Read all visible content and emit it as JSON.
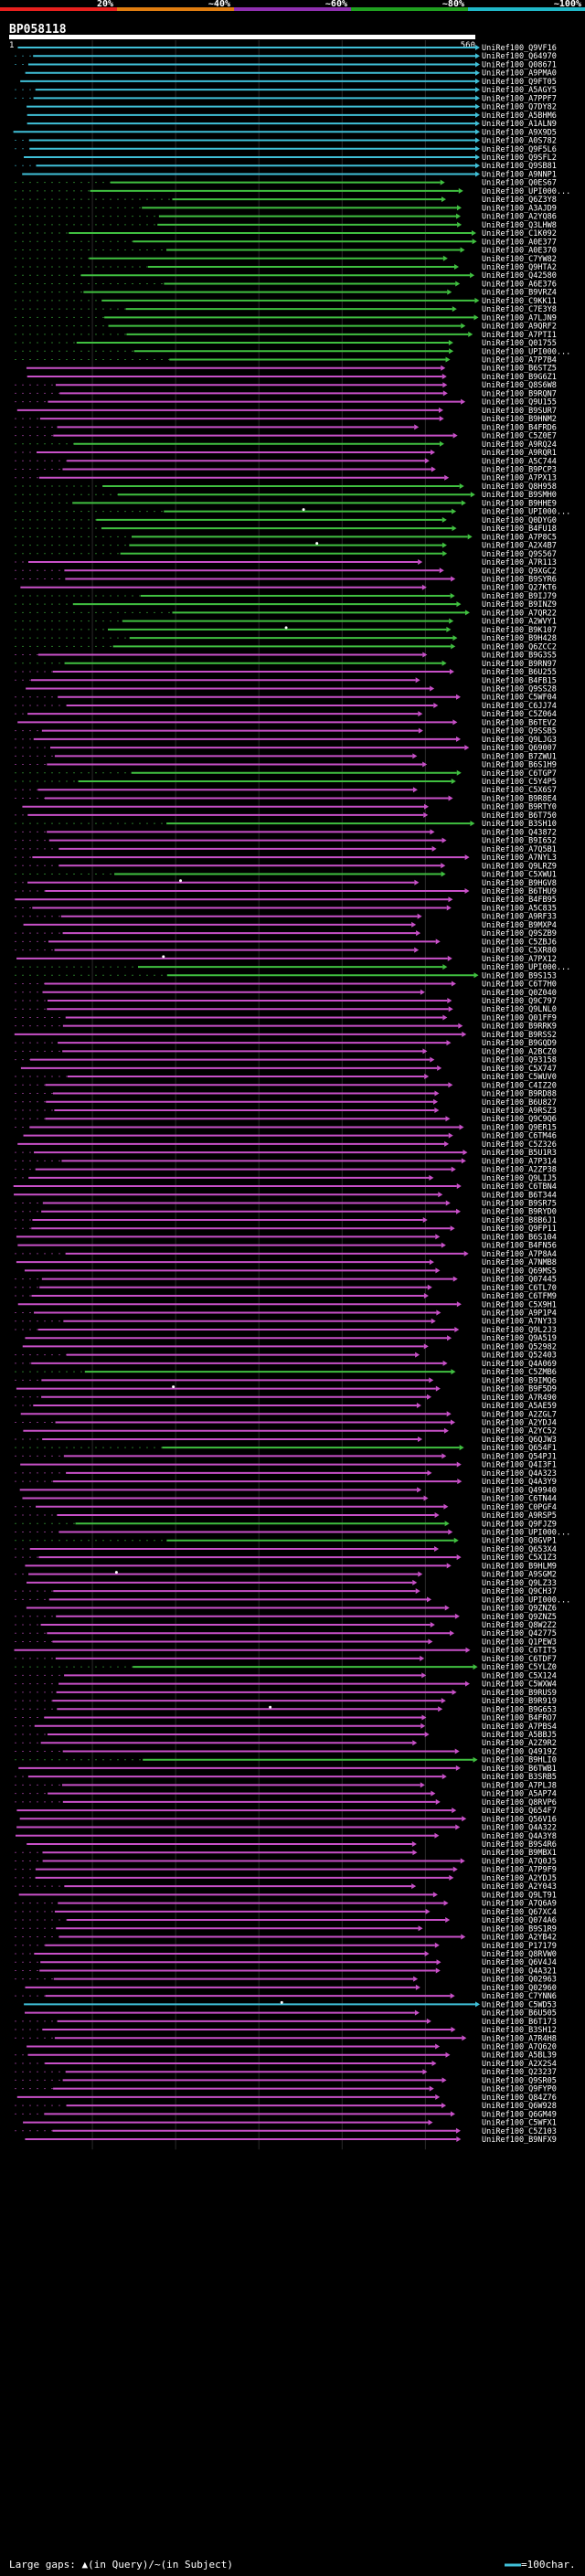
{
  "title": "BP058118",
  "scale": {
    "labels": [
      "20%",
      "~40%",
      "~60%",
      "~80%",
      "~100%"
    ],
    "colors": [
      "#e8201e",
      "#e07d10",
      "#9030b0",
      "#20a020",
      "#20b8c8"
    ]
  },
  "query": {
    "start_label": "1",
    "end_label": "560",
    "length": 560
  },
  "legend": {
    "large_gaps": "Large gaps: ▲(in Query)/~(in Subject)",
    "scale_label": "=100char."
  },
  "colors": {
    "teal": "#40c0d8",
    "green": "#40c040",
    "magenta": "#c850c8",
    "white": "#ffffff"
  },
  "hits": [
    {
      "id": "UniRef100_Q9VF16",
      "c": "t"
    },
    {
      "id": "UniRef100_Q64970",
      "c": "t"
    },
    {
      "id": "UniRef100_Q08671",
      "c": "t"
    },
    {
      "id": "UniRef100_A9PMA0",
      "c": "t"
    },
    {
      "id": "UniRef100_Q9FT05",
      "c": "t"
    },
    {
      "id": "UniRef100_A5AGY5",
      "c": "t"
    },
    {
      "id": "UniRef100_A7PPF7",
      "c": "t"
    },
    {
      "id": "UniRef100_Q7DY82",
      "c": "t"
    },
    {
      "id": "UniRef100_A5BHM6",
      "c": "t"
    },
    {
      "id": "UniRef100_A1ALN9",
      "c": "t"
    },
    {
      "id": "UniRef100_A9X9D5",
      "c": "t"
    },
    {
      "id": "UniRef100_A0S782",
      "c": "t"
    },
    {
      "id": "UniRef100_Q9F5L6",
      "c": "t"
    },
    {
      "id": "UniRef100_Q9SFL2",
      "c": "t"
    },
    {
      "id": "UniRef100_Q9SB81",
      "c": "t"
    },
    {
      "id": "UniRef100_A9NNP1",
      "c": "t"
    },
    {
      "id": "UniRef100_Q0ES67",
      "c": "g"
    },
    {
      "id": "UniRef100_UPI000...",
      "c": "g"
    },
    {
      "id": "UniRef100_Q6Z3Y8",
      "c": "g"
    },
    {
      "id": "UniRef100_A3AJD9",
      "c": "g"
    },
    {
      "id": "UniRef100_A2YQ86",
      "c": "g"
    },
    {
      "id": "UniRef100_Q3LHW8",
      "c": "g"
    },
    {
      "id": "UniRef100_C1K092",
      "c": "g"
    },
    {
      "id": "UniRef100_A0E377",
      "c": "g"
    },
    {
      "id": "UniRef100_A0E370",
      "c": "g"
    },
    {
      "id": "UniRef100_C7YW82",
      "c": "g"
    },
    {
      "id": "UniRef100_Q9HTA2",
      "c": "g"
    },
    {
      "id": "UniRef100_Q42580",
      "c": "g"
    },
    {
      "id": "UniRef100_A6E376",
      "c": "g"
    },
    {
      "id": "UniRef100_B9VRZ4",
      "c": "g"
    },
    {
      "id": "UniRef100_C9KK11",
      "c": "g"
    },
    {
      "id": "UniRef100_C7E3Y8",
      "c": "g"
    },
    {
      "id": "UniRef100_A7LJN9",
      "c": "g"
    },
    {
      "id": "UniRef100_A9QRF2",
      "c": "g"
    },
    {
      "id": "UniRef100_A7PTI1",
      "c": "g"
    },
    {
      "id": "UniRef100_Q01755",
      "c": "g"
    },
    {
      "id": "UniRef100_UPI000...",
      "c": "g"
    },
    {
      "id": "UniRef100_A7P7B4",
      "c": "g"
    },
    {
      "id": "UniRef100_B6STZ5",
      "c": "m"
    },
    {
      "id": "UniRef100_B9G6Z1",
      "c": "m"
    },
    {
      "id": "UniRef100_Q8S6W8",
      "c": "m"
    },
    {
      "id": "UniRef100_B9RQN7",
      "c": "m"
    },
    {
      "id": "UniRef100_Q9U155",
      "c": "m"
    },
    {
      "id": "UniRef100_B9SUR7",
      "c": "m"
    },
    {
      "id": "UniRef100_B9HNM2",
      "c": "m"
    },
    {
      "id": "UniRef100_B4FRD6",
      "c": "m"
    },
    {
      "id": "UniRef100_C5Z0E7",
      "c": "m"
    },
    {
      "id": "UniRef100_A9RQ24",
      "c": "g"
    },
    {
      "id": "UniRef100_A9RQR1",
      "c": "m"
    },
    {
      "id": "UniRef100_A5C744",
      "c": "m"
    },
    {
      "id": "UniRef100_B9PCP3",
      "c": "m"
    },
    {
      "id": "UniRef100_A7PX13",
      "c": "m"
    },
    {
      "id": "UniRef100_Q8H958",
      "c": "g"
    },
    {
      "id": "UniRef100_B9SMH0",
      "c": "g"
    },
    {
      "id": "UniRef100_B9HHE9",
      "c": "g"
    },
    {
      "id": "UniRef100_UPI000...",
      "c": "g",
      "dot": true
    },
    {
      "id": "UniRef100_Q0DYG0",
      "c": "g"
    },
    {
      "id": "UniRef100_B4FU18",
      "c": "g"
    },
    {
      "id": "UniRef100_A7P8C5",
      "c": "g"
    },
    {
      "id": "UniRef100_A2X4B7",
      "c": "g",
      "dot": true
    },
    {
      "id": "UniRef100_Q9S567",
      "c": "g"
    },
    {
      "id": "UniRef100_A7R113",
      "c": "m"
    },
    {
      "id": "UniRef100_Q9XGC2",
      "c": "m"
    },
    {
      "id": "UniRef100_B9SYR6",
      "c": "m"
    },
    {
      "id": "UniRef100_Q27KT6",
      "c": "m"
    },
    {
      "id": "UniRef100_B9IJ79",
      "c": "g"
    },
    {
      "id": "UniRef100_B9INZ9",
      "c": "g"
    },
    {
      "id": "UniRef100_A7QR22",
      "c": "g"
    },
    {
      "id": "UniRef100_A2WVY1",
      "c": "g"
    },
    {
      "id": "UniRef100_B9K107",
      "c": "g",
      "dot": true
    },
    {
      "id": "UniRef100_B9H428",
      "c": "g"
    },
    {
      "id": "UniRef100_Q6ZCC2",
      "c": "g"
    },
    {
      "id": "UniRef100_B9G3S5",
      "c": "m"
    },
    {
      "id": "UniRef100_B9RN97",
      "c": "g"
    },
    {
      "id": "UniRef100_B6U255",
      "c": "m"
    },
    {
      "id": "UniRef100_B4FB15",
      "c": "m"
    },
    {
      "id": "UniRef100_Q9SS28",
      "c": "m"
    },
    {
      "id": "UniRef100_C5WF04",
      "c": "m"
    },
    {
      "id": "UniRef100_C6JJ74",
      "c": "m"
    },
    {
      "id": "UniRef100_C5Z064",
      "c": "m"
    },
    {
      "id": "UniRef100_B6TEV2",
      "c": "m"
    },
    {
      "id": "UniRef100_Q9SSB5",
      "c": "m"
    },
    {
      "id": "UniRef100_Q9LJG3",
      "c": "m"
    },
    {
      "id": "UniRef100_Q69007",
      "c": "m"
    },
    {
      "id": "UniRef100_B7ZWU1",
      "c": "m"
    },
    {
      "id": "UniRef100_B6S1H9",
      "c": "m"
    },
    {
      "id": "UniRef100_C6TGP7",
      "c": "g"
    },
    {
      "id": "UniRef100_C5Y4P5",
      "c": "g"
    },
    {
      "id": "UniRef100_C5X6S7",
      "c": "m"
    },
    {
      "id": "UniRef100_B9R8E4",
      "c": "m"
    },
    {
      "id": "UniRef100_B9RTY0",
      "c": "m"
    },
    {
      "id": "UniRef100_B6T750",
      "c": "m"
    },
    {
      "id": "UniRef100_B3SH10",
      "c": "g"
    },
    {
      "id": "UniRef100_Q43872",
      "c": "m"
    },
    {
      "id": "UniRef100_B9I652",
      "c": "m"
    },
    {
      "id": "UniRef100_A7Q5B1",
      "c": "m"
    },
    {
      "id": "UniRef100_A7NYL3",
      "c": "m"
    },
    {
      "id": "UniRef100_Q9LRZ9",
      "c": "m"
    },
    {
      "id": "UniRef100_C5XWU1",
      "c": "g"
    },
    {
      "id": "UniRef100_B9HGV8",
      "c": "m",
      "dot": true
    },
    {
      "id": "UniRef100_B6THU9",
      "c": "m"
    },
    {
      "id": "UniRef100_B4FB95",
      "c": "m"
    },
    {
      "id": "UniRef100_A5C835",
      "c": "m"
    },
    {
      "id": "UniRef100_A9RF33",
      "c": "m"
    },
    {
      "id": "UniRef100_B9MXP4",
      "c": "m"
    },
    {
      "id": "UniRef100_Q9SZB9",
      "c": "m"
    },
    {
      "id": "UniRef100_C5ZBJ6",
      "c": "m"
    },
    {
      "id": "UniRef100_C5XR80",
      "c": "m"
    },
    {
      "id": "UniRef100_A7PX12",
      "c": "m",
      "dot": true
    },
    {
      "id": "UniRef100_UPI000...",
      "c": "g"
    },
    {
      "id": "UniRef100_B9S153",
      "c": "g"
    },
    {
      "id": "UniRef100_C6T7H0",
      "c": "m"
    },
    {
      "id": "UniRef100_Q0Z040",
      "c": "m"
    },
    {
      "id": "UniRef100_Q9C797",
      "c": "m"
    },
    {
      "id": "UniRef100_Q9LNL0",
      "c": "m"
    },
    {
      "id": "UniRef100_Q01FF9",
      "c": "m"
    },
    {
      "id": "UniRef100_B9RRK9",
      "c": "m"
    },
    {
      "id": "UniRef100_B9RSS2",
      "c": "m"
    },
    {
      "id": "UniRef100_B9GQD9",
      "c": "m"
    },
    {
      "id": "UniRef100_A2BCZ0",
      "c": "m"
    },
    {
      "id": "UniRef100_Q93158",
      "c": "m"
    },
    {
      "id": "UniRef100_C5X747",
      "c": "m"
    },
    {
      "id": "UniRef100_C5WUV0",
      "c": "m"
    },
    {
      "id": "UniRef100_C4IZ20",
      "c": "m"
    },
    {
      "id": "UniRef100_B9RD88",
      "c": "m"
    },
    {
      "id": "UniRef100_B6U827",
      "c": "m"
    },
    {
      "id": "UniRef100_A9RSZ3",
      "c": "m"
    },
    {
      "id": "UniRef100_Q9C9Q6",
      "c": "m"
    },
    {
      "id": "UniRef100_Q9ER15",
      "c": "m"
    },
    {
      "id": "UniRef100_C6TM46",
      "c": "m"
    },
    {
      "id": "UniRef100_C5Z326",
      "c": "m"
    },
    {
      "id": "UniRef100_B5U1R3",
      "c": "m"
    },
    {
      "id": "UniRef100_A7P314",
      "c": "m"
    },
    {
      "id": "UniRef100_A2ZP38",
      "c": "m"
    },
    {
      "id": "UniRef100_Q9LIJ5",
      "c": "m"
    },
    {
      "id": "UniRef100_C6TBN4",
      "c": "m"
    },
    {
      "id": "UniRef100_B6T344",
      "c": "m"
    },
    {
      "id": "UniRef100_B9SR75",
      "c": "m"
    },
    {
      "id": "UniRef100_B9RYD0",
      "c": "m"
    },
    {
      "id": "UniRef100_B8B6J1",
      "c": "m"
    },
    {
      "id": "UniRef100_Q9FP11",
      "c": "m"
    },
    {
      "id": "UniRef100_B6S104",
      "c": "m"
    },
    {
      "id": "UniRef100_B4FN56",
      "c": "m"
    },
    {
      "id": "UniRef100_A7P8A4",
      "c": "m"
    },
    {
      "id": "UniRef100_A7NMB8",
      "c": "m"
    },
    {
      "id": "UniRef100_Q69MS5",
      "c": "m"
    },
    {
      "id": "UniRef100_Q07445",
      "c": "m"
    },
    {
      "id": "UniRef100_C6TL70",
      "c": "m"
    },
    {
      "id": "UniRef100_C6TFM9",
      "c": "m"
    },
    {
      "id": "UniRef100_C5X9H1",
      "c": "m"
    },
    {
      "id": "UniRef100_A9P1P4",
      "c": "m"
    },
    {
      "id": "UniRef100_A7NY33",
      "c": "m"
    },
    {
      "id": "UniRef100_Q9L2J3",
      "c": "m"
    },
    {
      "id": "UniRef100_Q9A519",
      "c": "m"
    },
    {
      "id": "UniRef100_Q52982",
      "c": "m"
    },
    {
      "id": "UniRef100_Q52403",
      "c": "m"
    },
    {
      "id": "UniRef100_Q4A069",
      "c": "m"
    },
    {
      "id": "UniRef100_C5ZMB6",
      "c": "g"
    },
    {
      "id": "UniRef100_B9IMQ6",
      "c": "m"
    },
    {
      "id": "UniRef100_B9F5D9",
      "c": "m",
      "dot": true
    },
    {
      "id": "UniRef100_A7R490",
      "c": "m"
    },
    {
      "id": "UniRef100_A5AE59",
      "c": "m"
    },
    {
      "id": "UniRef100_A2ZGL7",
      "c": "m"
    },
    {
      "id": "UniRef100_A2YDJ4",
      "c": "m"
    },
    {
      "id": "UniRef100_A2YC52",
      "c": "m"
    },
    {
      "id": "UniRef100_Q6QJW3",
      "c": "m"
    },
    {
      "id": "UniRef100_Q654F1",
      "c": "g"
    },
    {
      "id": "UniRef100_Q54PJ1",
      "c": "m"
    },
    {
      "id": "UniRef100_Q4I3F1",
      "c": "m"
    },
    {
      "id": "UniRef100_Q4A323",
      "c": "m"
    },
    {
      "id": "UniRef100_Q4A3Y9",
      "c": "m"
    },
    {
      "id": "UniRef100_Q49940",
      "c": "m"
    },
    {
      "id": "UniRef100_C6TN44",
      "c": "m"
    },
    {
      "id": "UniRef100_C0PGF4",
      "c": "m"
    },
    {
      "id": "UniRef100_A9RSP5",
      "c": "m"
    },
    {
      "id": "UniRef100_Q9FJZ9",
      "c": "g"
    },
    {
      "id": "UniRef100_UPI000...",
      "c": "m"
    },
    {
      "id": "UniRef100_Q8GVP1",
      "c": "g"
    },
    {
      "id": "UniRef100_Q653X4",
      "c": "m"
    },
    {
      "id": "UniRef100_C5X1Z3",
      "c": "m"
    },
    {
      "id": "UniRef100_B9HLM9",
      "c": "m"
    },
    {
      "id": "UniRef100_A9SGM2",
      "c": "m",
      "dot": true
    },
    {
      "id": "UniRef100_Q9LZ33",
      "c": "m"
    },
    {
      "id": "UniRef100_Q9CH37",
      "c": "m"
    },
    {
      "id": "UniRef100_UPI000...",
      "c": "m"
    },
    {
      "id": "UniRef100_Q9ZNZ6",
      "c": "m"
    },
    {
      "id": "UniRef100_Q9ZNZ5",
      "c": "m"
    },
    {
      "id": "UniRef100_Q8W2Z2",
      "c": "m"
    },
    {
      "id": "UniRef100_Q42775",
      "c": "m"
    },
    {
      "id": "UniRef100_Q1PEW3",
      "c": "m"
    },
    {
      "id": "UniRef100_C6TIT5",
      "c": "m"
    },
    {
      "id": "UniRef100_C6TDF7",
      "c": "m"
    },
    {
      "id": "UniRef100_C5YLZ0",
      "c": "g"
    },
    {
      "id": "UniRef100_C5X124",
      "c": "m"
    },
    {
      "id": "UniRef100_C5WXW4",
      "c": "m"
    },
    {
      "id": "UniRef100_B9RUS9",
      "c": "m"
    },
    {
      "id": "UniRef100_B9R919",
      "c": "m"
    },
    {
      "id": "UniRef100_B9G653",
      "c": "m",
      "dot": true
    },
    {
      "id": "UniRef100_B4FRO7",
      "c": "m"
    },
    {
      "id": "UniRef100_A7PBS4",
      "c": "m"
    },
    {
      "id": "UniRef100_A5BBJ5",
      "c": "m"
    },
    {
      "id": "UniRef100_A2Z9R2",
      "c": "m"
    },
    {
      "id": "UniRef100_Q4919Z",
      "c": "m"
    },
    {
      "id": "UniRef100_B9HLI0",
      "c": "g"
    },
    {
      "id": "UniRef100_B6TWB1",
      "c": "m"
    },
    {
      "id": "UniRef100_B3SRB5",
      "c": "m"
    },
    {
      "id": "UniRef100_A7PLJ8",
      "c": "m"
    },
    {
      "id": "UniRef100_A5AP74",
      "c": "m"
    },
    {
      "id": "UniRef100_Q8RVP6",
      "c": "m"
    },
    {
      "id": "UniRef100_Q654F7",
      "c": "m"
    },
    {
      "id": "UniRef100_Q56V16",
      "c": "m"
    },
    {
      "id": "UniRef100_Q4A322",
      "c": "m"
    },
    {
      "id": "UniRef100_Q4A3Y8",
      "c": "m"
    },
    {
      "id": "UniRef100_B9S4R6",
      "c": "m"
    },
    {
      "id": "UniRef100_B9MBX1",
      "c": "m"
    },
    {
      "id": "UniRef100_A7Q0J5",
      "c": "m"
    },
    {
      "id": "UniRef100_A7P9F9",
      "c": "m"
    },
    {
      "id": "UniRef100_A2YDJ5",
      "c": "m"
    },
    {
      "id": "UniRef100_A2Y043",
      "c": "m"
    },
    {
      "id": "UniRef100_Q9LT91",
      "c": "m"
    },
    {
      "id": "UniRef100_A7Q6A9",
      "c": "m"
    },
    {
      "id": "UniRef100_Q67XC4",
      "c": "m"
    },
    {
      "id": "UniRef100_Q074A6",
      "c": "m"
    },
    {
      "id": "UniRef100_B9S1R9",
      "c": "m"
    },
    {
      "id": "UniRef100_A2YB42",
      "c": "m"
    },
    {
      "id": "UniRef100_P17179",
      "c": "m"
    },
    {
      "id": "UniRef100_Q8RVW0",
      "c": "m"
    },
    {
      "id": "UniRef100_Q6V4J4",
      "c": "m"
    },
    {
      "id": "UniRef100_Q4A321",
      "c": "m"
    },
    {
      "id": "UniRef100_Q02963",
      "c": "m"
    },
    {
      "id": "UniRef100_Q02960",
      "c": "m"
    },
    {
      "id": "UniRef100_C7YNN6",
      "c": "m"
    },
    {
      "id": "UniRef100_C5WD53",
      "c": "t",
      "dot": true
    },
    {
      "id": "UniRef100_B6U505",
      "c": "m"
    },
    {
      "id": "UniRef100_B6T173",
      "c": "m"
    },
    {
      "id": "UniRef100_B3SH12",
      "c": "m"
    },
    {
      "id": "UniRef100_A7R4H8",
      "c": "m"
    },
    {
      "id": "UniRef100_A7Q620",
      "c": "m"
    },
    {
      "id": "UniRef100_A5BL39",
      "c": "m"
    },
    {
      "id": "UniRef100_A2X2S4",
      "c": "m"
    },
    {
      "id": "UniRef100_Q23237",
      "c": "m"
    },
    {
      "id": "UniRef100_Q9SR05",
      "c": "m"
    },
    {
      "id": "UniRef100_Q9FYP0",
      "c": "m"
    },
    {
      "id": "UniRef100_Q84Z76",
      "c": "m"
    },
    {
      "id": "UniRef100_Q6W928",
      "c": "m"
    },
    {
      "id": "UniRef100_Q6GM49",
      "c": "m"
    },
    {
      "id": "UniRef100_C5WFX1",
      "c": "m"
    },
    {
      "id": "UniRef100_C5Z103",
      "c": "m"
    },
    {
      "id": "UniRef100_B9NFX9",
      "c": "m"
    }
  ]
}
